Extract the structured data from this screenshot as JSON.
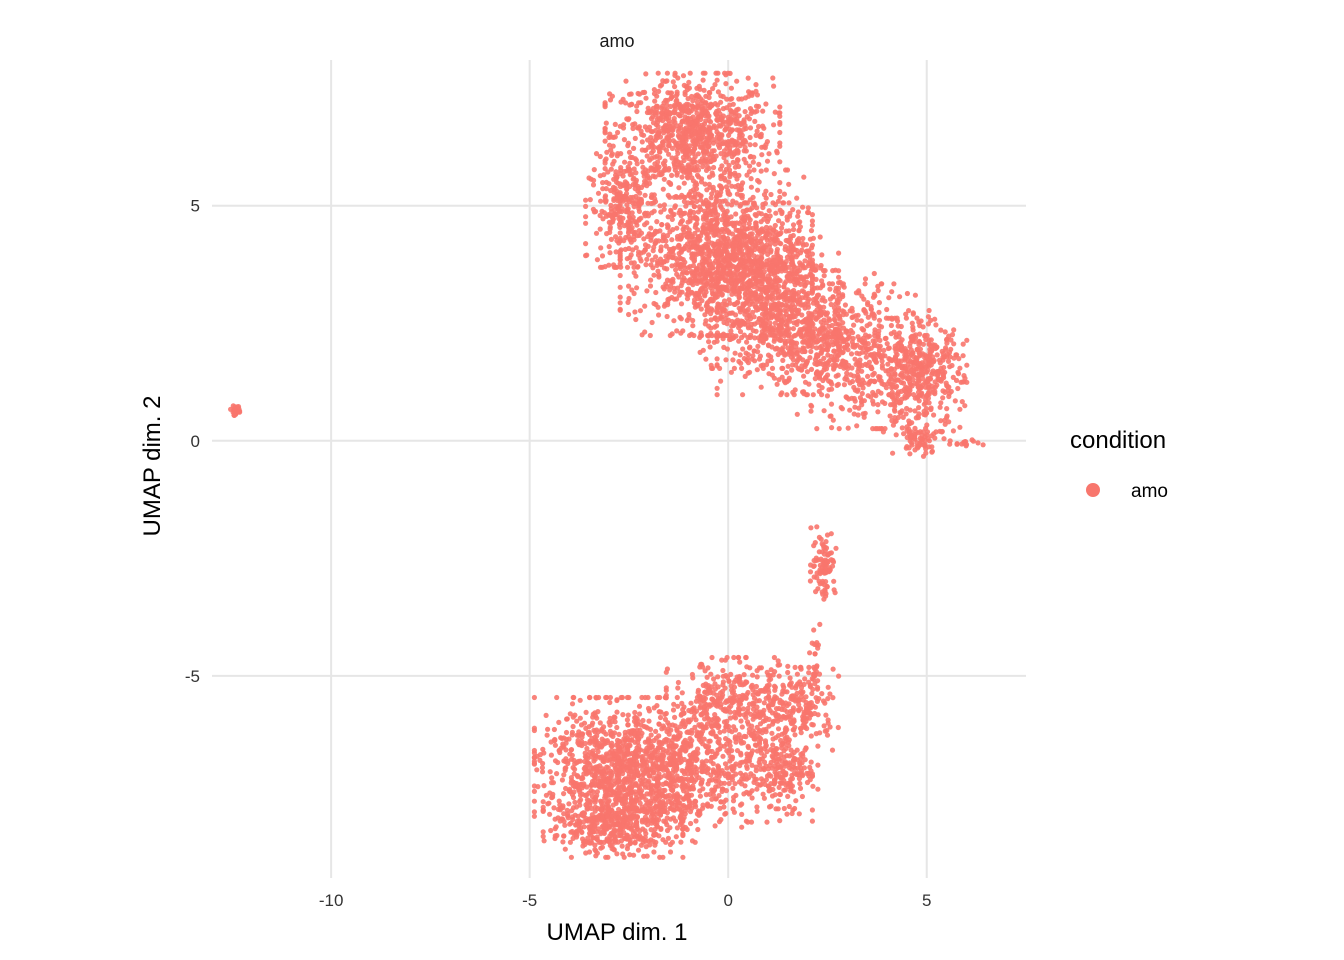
{
  "chart_data": {
    "type": "scatter",
    "facet_title": "amo",
    "xlabel": "UMAP dim. 1",
    "ylabel": "UMAP dim. 2",
    "xlim": [
      -13,
      7.5
    ],
    "ylim": [
      -9.3,
      8.1
    ],
    "x_ticks": [
      -10,
      -5,
      0,
      5
    ],
    "y_ticks": [
      5,
      0,
      -5
    ],
    "x_tick_labels": [
      "-10",
      "-5",
      "0",
      "5"
    ],
    "y_tick_labels": [
      "5",
      "0",
      "-5"
    ],
    "grid": true,
    "legend": {
      "title": "condition",
      "position": "right",
      "entries": [
        "amo"
      ]
    },
    "series": [
      {
        "name": "amo",
        "color": "#f8766d",
        "clusters": [
          {
            "cx": -0.9,
            "cy": 6.5,
            "sx": 1.0,
            "sy": 0.6,
            "n": 900
          },
          {
            "cx": -2.6,
            "cy": 4.9,
            "sx": 0.45,
            "sy": 0.55,
            "n": 260
          },
          {
            "cx": -0.3,
            "cy": 4.0,
            "sx": 1.1,
            "sy": 0.8,
            "n": 1100
          },
          {
            "cx": 0.8,
            "cy": 3.3,
            "sx": 0.9,
            "sy": 0.8,
            "n": 700
          },
          {
            "cx": 1.7,
            "cy": 2.3,
            "sx": 0.9,
            "sy": 0.6,
            "n": 450
          },
          {
            "cx": 3.3,
            "cy": 1.8,
            "sx": 0.8,
            "sy": 0.7,
            "n": 450
          },
          {
            "cx": 4.8,
            "cy": 1.4,
            "sx": 0.55,
            "sy": 0.55,
            "n": 420
          },
          {
            "cx": 4.8,
            "cy": 0.0,
            "sx": 0.3,
            "sy": 0.15,
            "n": 60
          },
          {
            "cx": 6.1,
            "cy": -0.05,
            "sx": 0.3,
            "sy": 0.05,
            "n": 15
          },
          {
            "cx": 2.4,
            "cy": -2.6,
            "sx": 0.15,
            "sy": 0.35,
            "n": 90
          },
          {
            "cx": 2.2,
            "cy": -4.6,
            "sx": 0.08,
            "sy": 0.4,
            "n": 25
          },
          {
            "cx": 1.9,
            "cy": -5.7,
            "sx": 0.4,
            "sy": 0.4,
            "n": 150
          },
          {
            "cx": 0.2,
            "cy": -5.6,
            "sx": 0.8,
            "sy": 0.45,
            "n": 350
          },
          {
            "cx": -2.9,
            "cy": -7.0,
            "sx": 0.9,
            "sy": 0.7,
            "n": 900
          },
          {
            "cx": -2.9,
            "cy": -8.2,
            "sx": 0.8,
            "sy": 0.3,
            "n": 350
          },
          {
            "cx": -1.2,
            "cy": -7.0,
            "sx": 0.7,
            "sy": 0.7,
            "n": 550
          },
          {
            "cx": 0.8,
            "cy": -6.9,
            "sx": 0.6,
            "sy": 0.55,
            "n": 250
          },
          {
            "cx": 1.6,
            "cy": -7.0,
            "sx": 0.3,
            "sy": 0.5,
            "n": 90
          },
          {
            "cx": -12.4,
            "cy": 0.65,
            "sx": 0.06,
            "sy": 0.05,
            "n": 25
          }
        ]
      }
    ]
  }
}
